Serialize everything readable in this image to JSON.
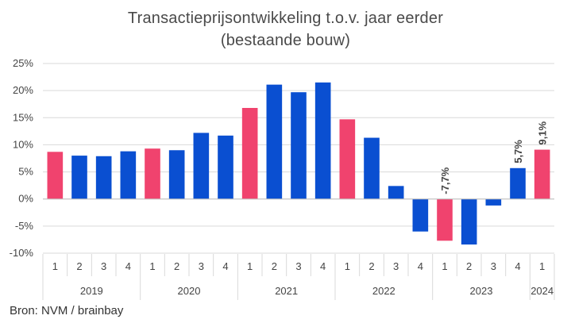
{
  "chart_data": {
    "type": "bar",
    "title": "Transactieprijsontwikkeling t.o.v. jaar eerder",
    "subtitle": "(bestaande bouw)",
    "source": "Bron: NVM / brainbay",
    "ylim": [
      -10,
      25
    ],
    "yticks": [
      25,
      20,
      15,
      10,
      5,
      0,
      -5,
      -10
    ],
    "ytick_labels": [
      "25%",
      "20%",
      "15%",
      "10%",
      "5%",
      "0%",
      "-5%",
      "-10%"
    ],
    "grid": true,
    "colors": {
      "pink": "#f0436e",
      "blue": "#0a4fd1"
    },
    "years": [
      {
        "label": "2019",
        "quarters": 4
      },
      {
        "label": "2020",
        "quarters": 4
      },
      {
        "label": "2021",
        "quarters": 4
      },
      {
        "label": "2022",
        "quarters": 4
      },
      {
        "label": "2023",
        "quarters": 4
      },
      {
        "label": "2024",
        "quarters": 1
      }
    ],
    "categories": [
      "1",
      "2",
      "3",
      "4",
      "1",
      "2",
      "3",
      "4",
      "1",
      "2",
      "3",
      "4",
      "1",
      "2",
      "3",
      "4",
      "1",
      "2",
      "3",
      "4",
      "1"
    ],
    "values": [
      8.7,
      8.0,
      7.9,
      8.8,
      9.3,
      9.0,
      12.2,
      11.7,
      16.8,
      21.1,
      19.7,
      21.5,
      14.7,
      11.3,
      2.4,
      -6.0,
      -7.7,
      -8.4,
      -1.2,
      5.7,
      9.1
    ],
    "bar_colors": [
      "pink",
      "blue",
      "blue",
      "blue",
      "pink",
      "blue",
      "blue",
      "blue",
      "pink",
      "blue",
      "blue",
      "blue",
      "pink",
      "blue",
      "blue",
      "blue",
      "pink",
      "blue",
      "blue",
      "blue",
      "pink"
    ],
    "data_labels": [
      {
        "index": 16,
        "text": "-7,7%"
      },
      {
        "index": 19,
        "text": "5,7%"
      },
      {
        "index": 20,
        "text": "9,1%"
      }
    ]
  }
}
